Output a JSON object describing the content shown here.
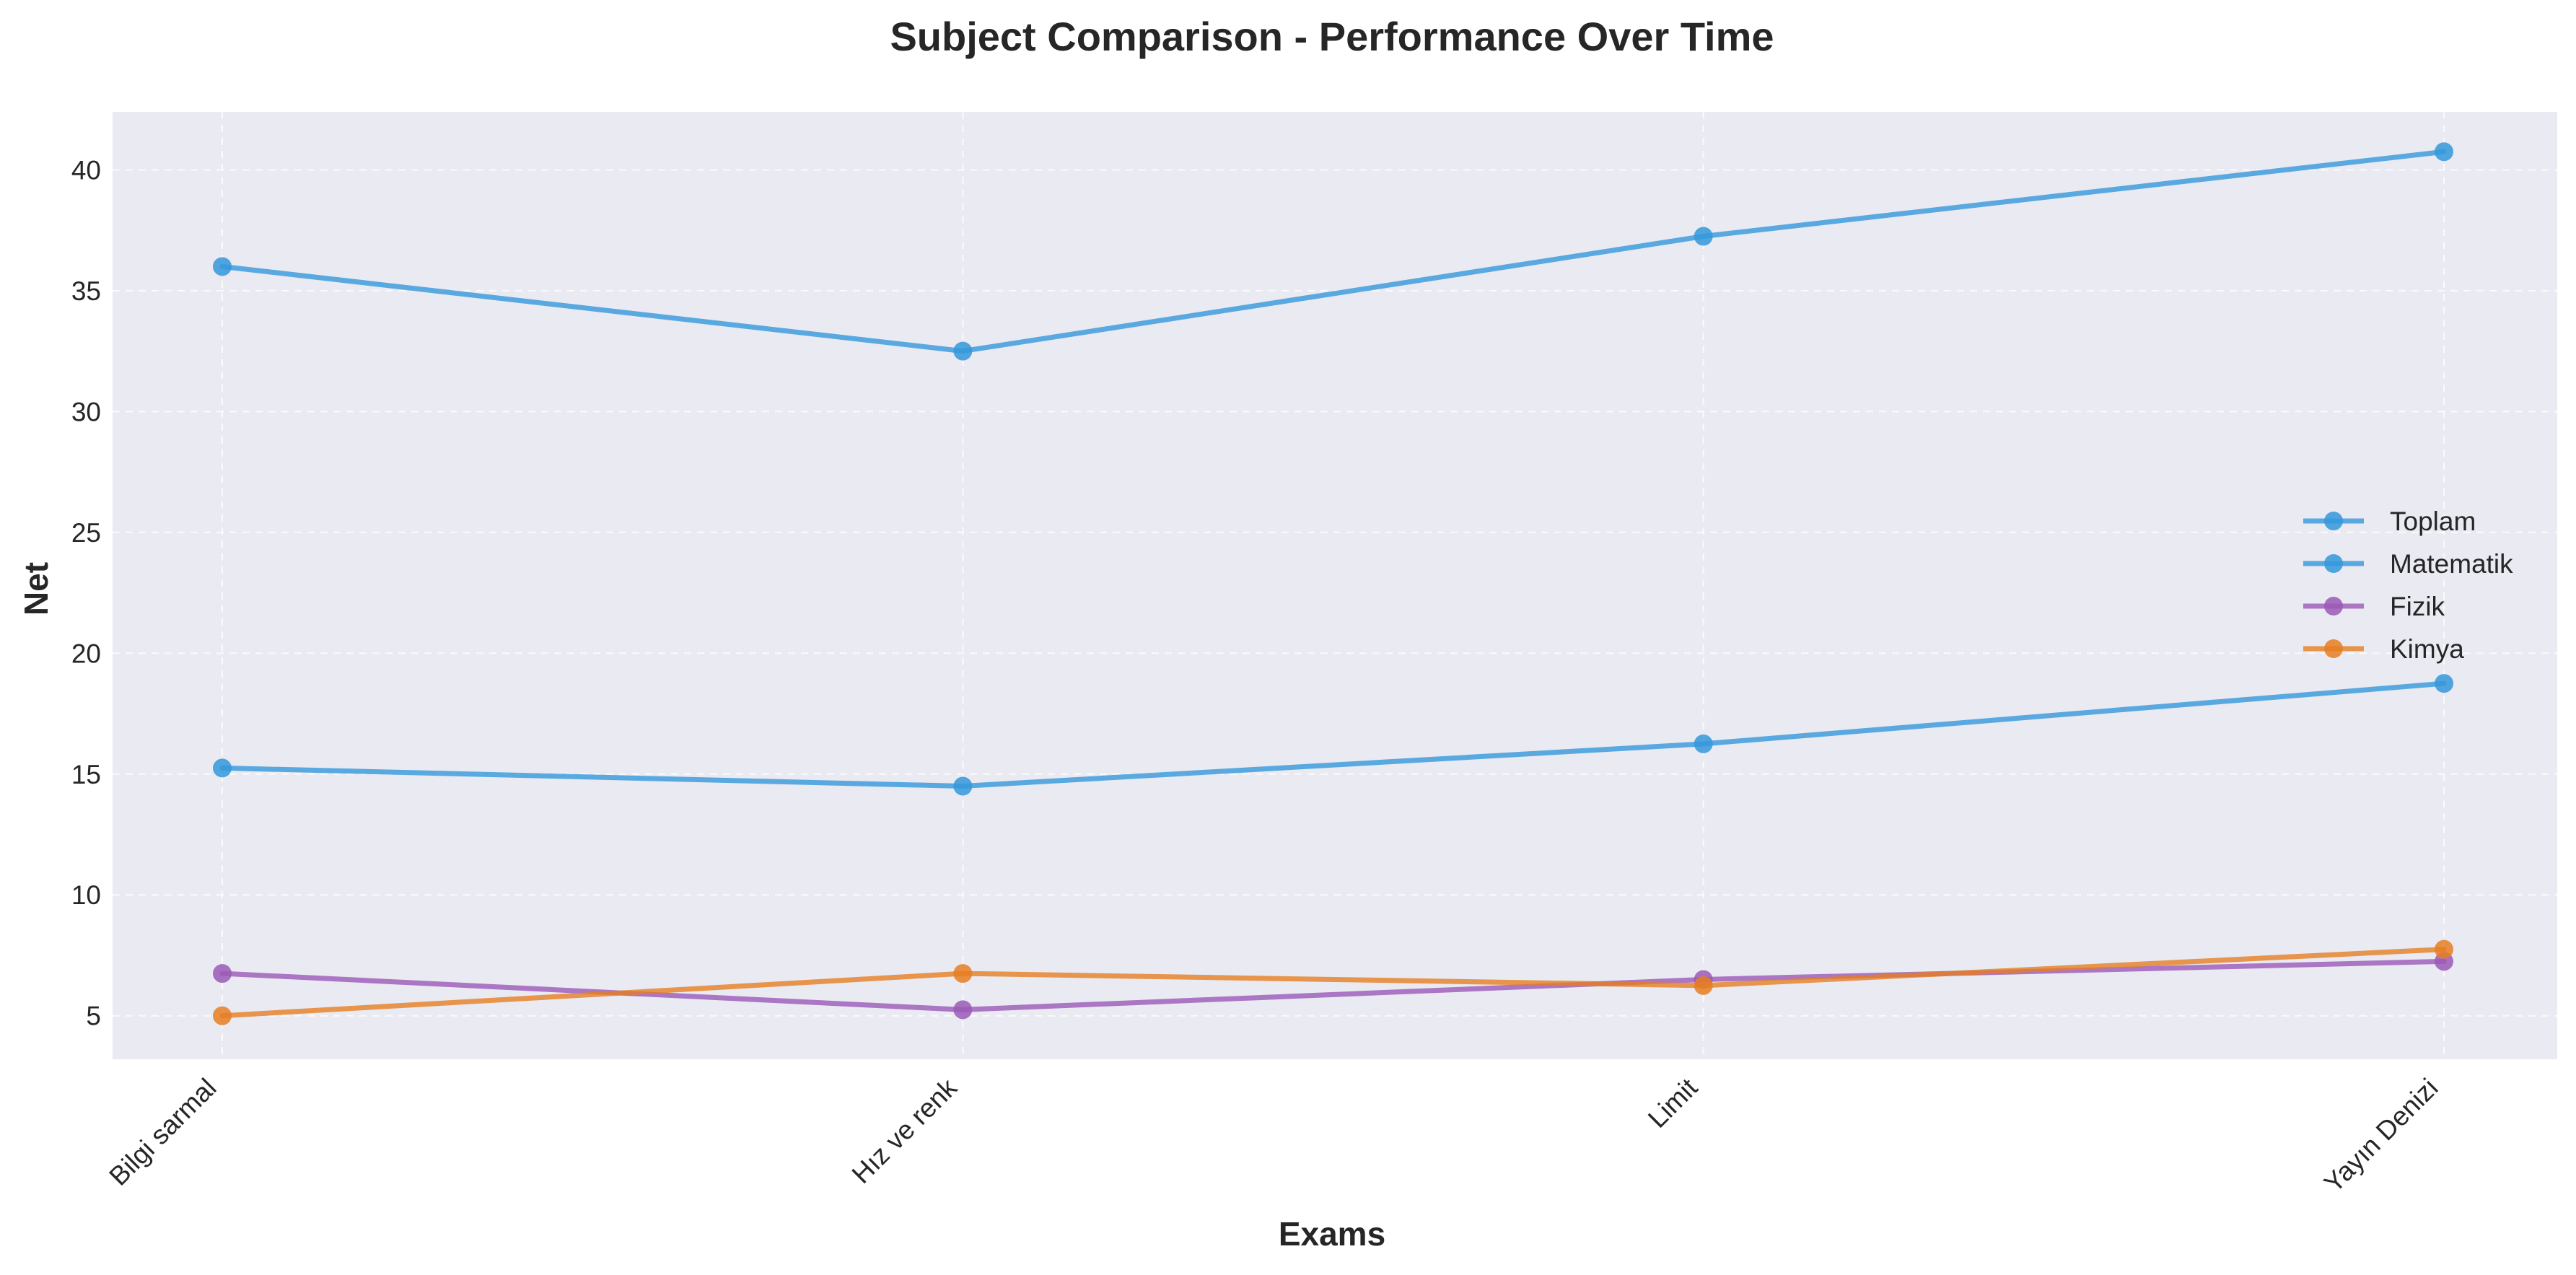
{
  "chart_data": {
    "type": "line",
    "title": "Subject Comparison - Performance Over Time",
    "xlabel": "Exams",
    "ylabel": "Net",
    "categories": [
      "Bilgi sarmal",
      "Hız ve renk",
      "Limit",
      "Yayın Denizi"
    ],
    "ylim": [
      3.2,
      42.4
    ],
    "yticks": [
      5,
      10,
      15,
      20,
      25,
      30,
      35,
      40
    ],
    "grid": true,
    "legend_position": "center-right",
    "series": [
      {
        "name": "Toplam",
        "color": "#3498db",
        "values": [
          36.0,
          32.5,
          37.25,
          40.75
        ]
      },
      {
        "name": "Matematik",
        "color": "#3498db",
        "values": [
          15.25,
          14.5,
          16.25,
          18.75
        ]
      },
      {
        "name": "Fizik",
        "color": "#9b59b6",
        "values": [
          6.75,
          5.25,
          6.5,
          7.25
        ]
      },
      {
        "name": "Kimya",
        "color": "#e67e22",
        "values": [
          5.0,
          6.75,
          6.25,
          7.75
        ]
      }
    ]
  }
}
